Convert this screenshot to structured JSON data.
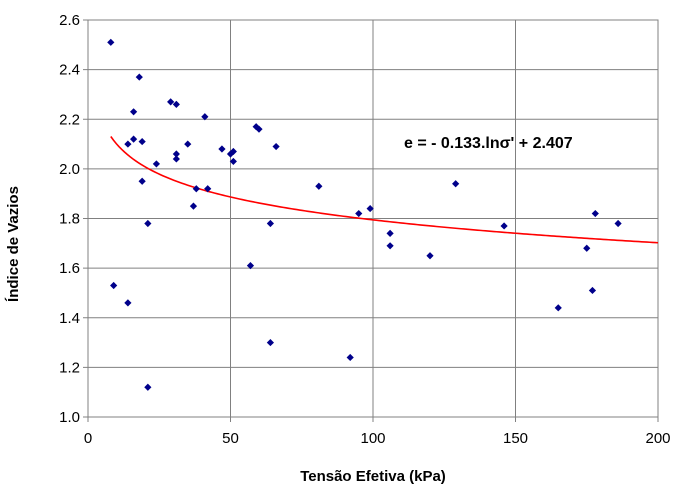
{
  "chart_data": {
    "type": "scatter",
    "title": "",
    "xlabel": "Tensão Efetiva (kPa)",
    "ylabel": "Índice de Vazios",
    "xlim": [
      0,
      200
    ],
    "ylim": [
      1.0,
      2.6
    ],
    "xticks": [
      "0",
      "50",
      "100",
      "150",
      "200"
    ],
    "yticks": [
      "1.0",
      "1.2",
      "1.4",
      "1.6",
      "1.8",
      "2.0",
      "2.2",
      "2.4",
      "2.6"
    ],
    "grid": true,
    "legend": "none",
    "point_color": "#00008B",
    "trend_color": "#FF0000",
    "trendline": {
      "type": "logarithmic",
      "a": -0.133,
      "b": 2.407,
      "x_range": [
        8,
        200
      ],
      "label": "e = - 0.133.lnσ' + 2.407"
    },
    "points": [
      {
        "x": 8,
        "y": 2.51
      },
      {
        "x": 9,
        "y": 1.53
      },
      {
        "x": 14,
        "y": 2.1
      },
      {
        "x": 14,
        "y": 1.46
      },
      {
        "x": 16,
        "y": 2.23
      },
      {
        "x": 16,
        "y": 2.12
      },
      {
        "x": 18,
        "y": 2.37
      },
      {
        "x": 19,
        "y": 2.11
      },
      {
        "x": 19,
        "y": 1.95
      },
      {
        "x": 21,
        "y": 1.78
      },
      {
        "x": 21,
        "y": 1.12
      },
      {
        "x": 24,
        "y": 2.02
      },
      {
        "x": 29,
        "y": 2.27
      },
      {
        "x": 31,
        "y": 2.26
      },
      {
        "x": 31,
        "y": 2.06
      },
      {
        "x": 31,
        "y": 2.04
      },
      {
        "x": 35,
        "y": 2.1
      },
      {
        "x": 37,
        "y": 1.85
      },
      {
        "x": 38,
        "y": 1.92
      },
      {
        "x": 41,
        "y": 2.21
      },
      {
        "x": 42,
        "y": 1.92
      },
      {
        "x": 47,
        "y": 2.08
      },
      {
        "x": 50,
        "y": 2.06
      },
      {
        "x": 51,
        "y": 2.07
      },
      {
        "x": 51,
        "y": 2.03
      },
      {
        "x": 57,
        "y": 1.61
      },
      {
        "x": 59,
        "y": 2.17
      },
      {
        "x": 60,
        "y": 2.16
      },
      {
        "x": 64,
        "y": 1.78
      },
      {
        "x": 64,
        "y": 1.3
      },
      {
        "x": 66,
        "y": 2.09
      },
      {
        "x": 81,
        "y": 1.93
      },
      {
        "x": 92,
        "y": 1.24
      },
      {
        "x": 95,
        "y": 1.82
      },
      {
        "x": 99,
        "y": 1.84
      },
      {
        "x": 106,
        "y": 1.74
      },
      {
        "x": 106,
        "y": 1.69
      },
      {
        "x": 120,
        "y": 1.65
      },
      {
        "x": 129,
        "y": 1.94
      },
      {
        "x": 146,
        "y": 1.77
      },
      {
        "x": 165,
        "y": 1.44
      },
      {
        "x": 175,
        "y": 1.68
      },
      {
        "x": 177,
        "y": 1.51
      },
      {
        "x": 178,
        "y": 1.82
      },
      {
        "x": 186,
        "y": 1.78
      }
    ]
  }
}
